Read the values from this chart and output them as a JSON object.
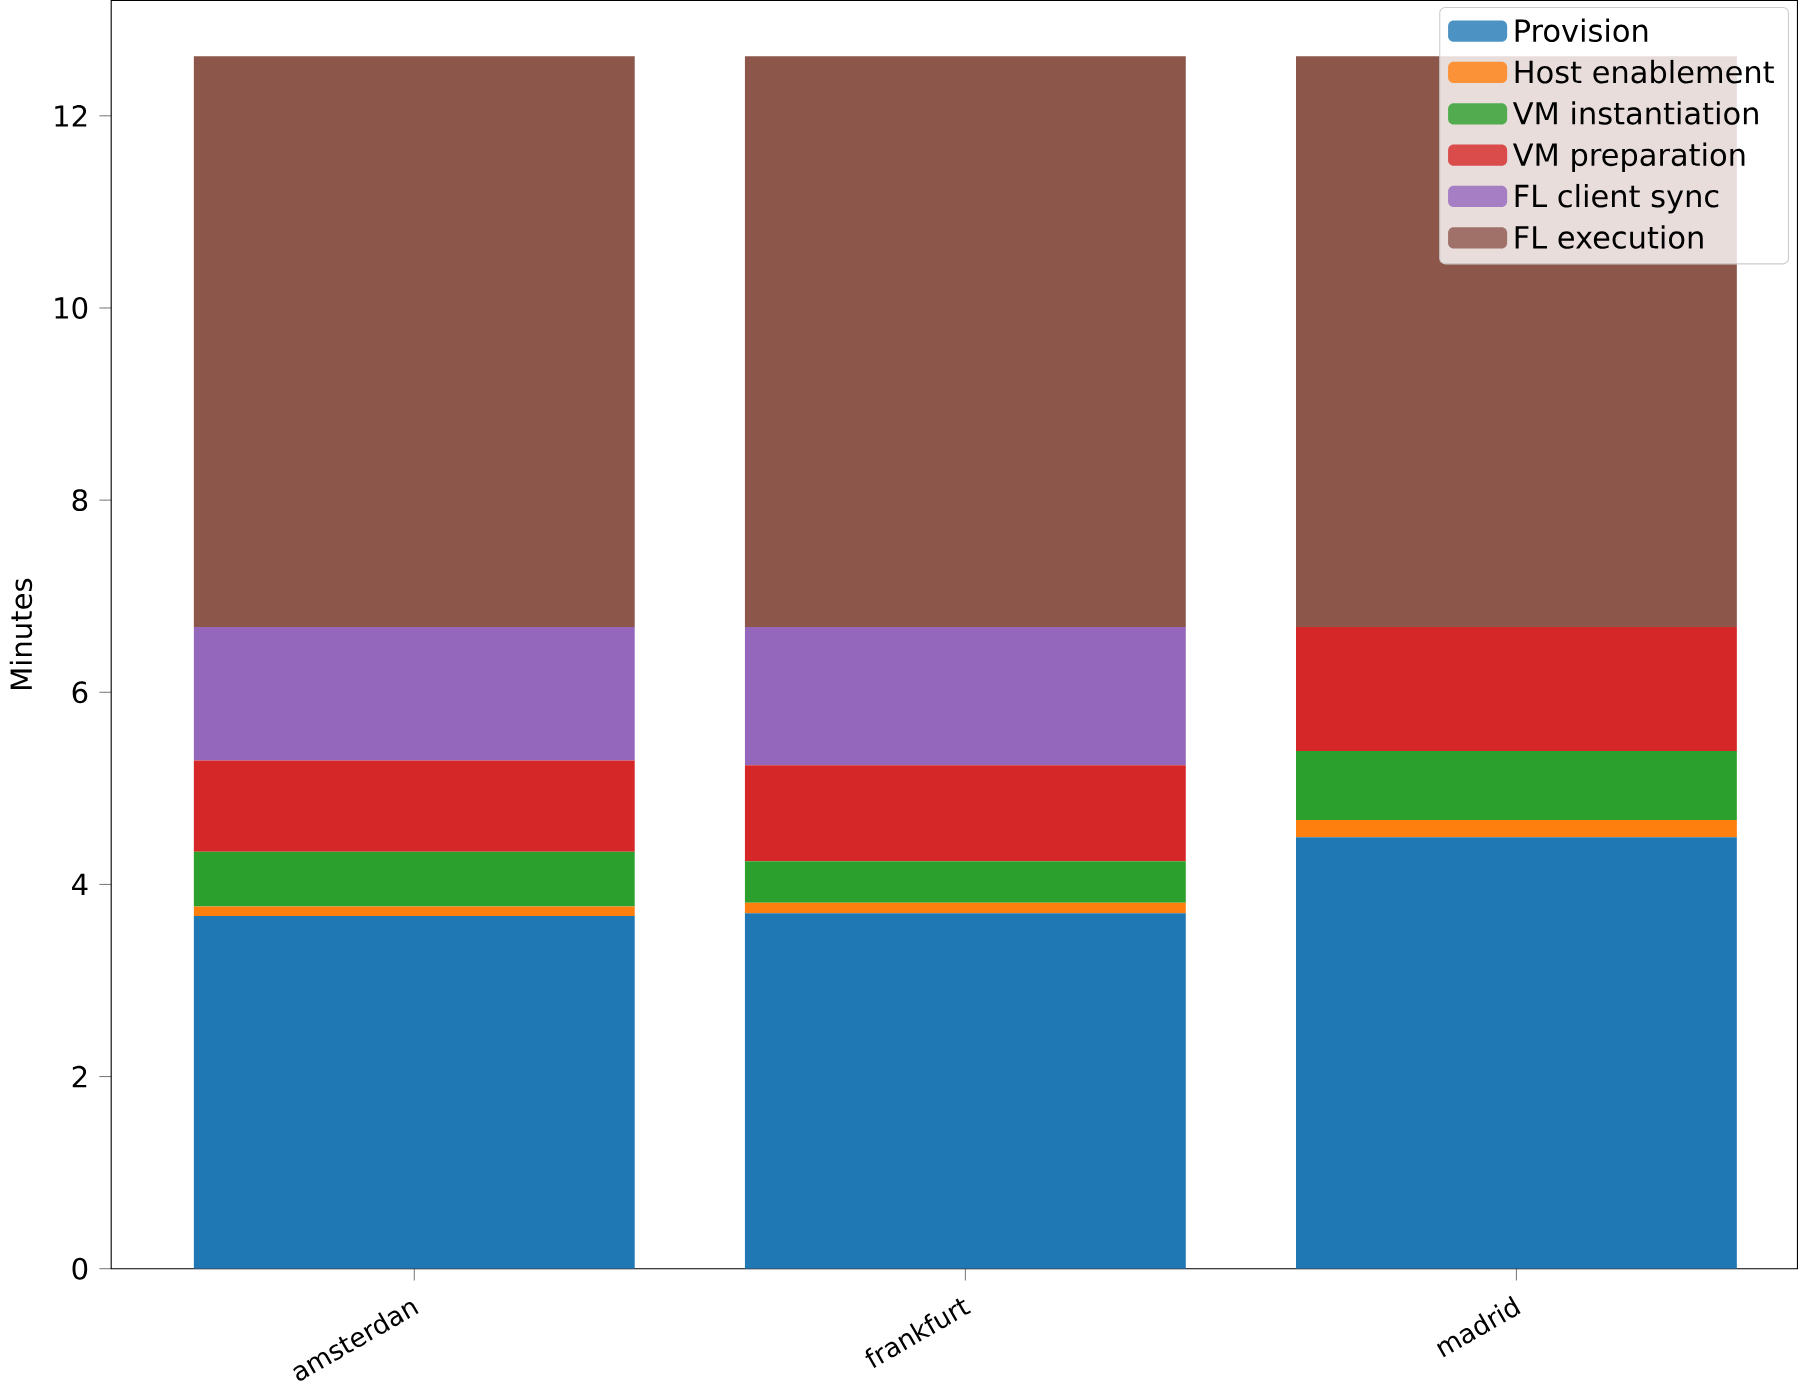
{
  "chart_data": {
    "type": "bar",
    "stacked": true,
    "ylabel": "Minutes",
    "categories": [
      "amsterdan",
      "frankfurt",
      "madrid"
    ],
    "series": [
      {
        "name": "Provision",
        "color": "#1f77b4",
        "values": [
          3.67,
          3.7,
          4.49
        ]
      },
      {
        "name": "Host enablement",
        "color": "#ff7f0e",
        "values": [
          0.1,
          0.11,
          0.18
        ]
      },
      {
        "name": "VM instantiation",
        "color": "#2ca02c",
        "values": [
          0.57,
          0.43,
          0.72
        ]
      },
      {
        "name": "VM preparation",
        "color": "#d62728",
        "values": [
          0.95,
          1.0,
          1.29
        ]
      },
      {
        "name": "FL client sync",
        "color": "#9467bd",
        "values": [
          1.39,
          1.44,
          0
        ]
      },
      {
        "name": "FL execution",
        "color": "#8c564b",
        "values": [
          5.94,
          5.94,
          5.94
        ]
      }
    ],
    "ylim": [
      0,
      13.2
    ],
    "yticks": [
      0,
      2,
      4,
      6,
      8,
      10,
      12
    ],
    "legend": "top right"
  }
}
